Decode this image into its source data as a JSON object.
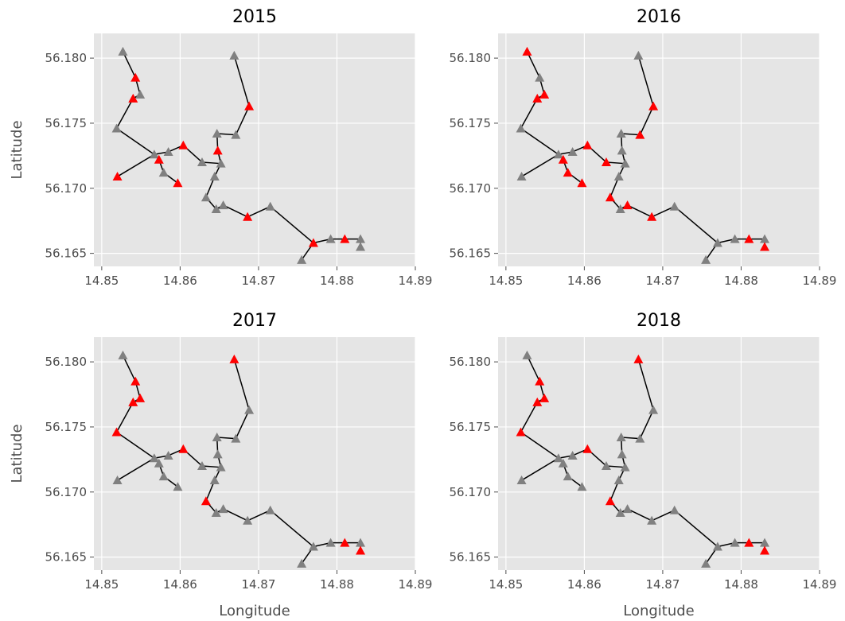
{
  "chart_data": [
    {
      "type": "scatter",
      "title": "2015",
      "ylabel": "Latitude",
      "x": [
        14.8527,
        14.8543,
        14.8549,
        14.854,
        14.8519,
        14.852,
        14.8567,
        14.8573,
        14.8585,
        14.8604,
        14.8579,
        14.8597,
        14.8628,
        14.8647,
        14.8648,
        14.8652,
        14.8644,
        14.8633,
        14.8646,
        14.8655,
        14.8671,
        14.8669,
        14.8688,
        14.8686,
        14.8715,
        14.877,
        14.8792,
        14.881,
        14.883,
        14.883,
        14.8755
      ],
      "y": [
        56.1805,
        56.1785,
        56.1772,
        56.1769,
        56.1746,
        56.1709,
        56.1726,
        56.1722,
        56.1728,
        56.1733,
        56.1712,
        56.1704,
        56.172,
        56.1742,
        56.1729,
        56.1719,
        56.1709,
        56.1693,
        56.1684,
        56.1687,
        56.1741,
        56.1802,
        56.1763,
        56.1678,
        56.1686,
        56.1658,
        56.1661,
        56.1661,
        56.1661,
        56.1655,
        56.1645
      ],
      "colors": [
        "gray",
        "red",
        "gray",
        "red",
        "gray",
        "red",
        "gray",
        "red",
        "gray",
        "red",
        "gray",
        "red",
        "gray",
        "gray",
        "red",
        "gray",
        "gray",
        "gray",
        "gray",
        "gray",
        "gray",
        "gray",
        "red",
        "red",
        "gray",
        "red",
        "gray",
        "red",
        "gray",
        "gray",
        "gray"
      ],
      "xlim": [
        14.849,
        14.89
      ],
      "ylim": [
        56.164,
        56.1819
      ],
      "xticks": [
        14.85,
        14.86,
        14.87,
        14.88,
        14.89
      ],
      "yticks": [
        {
          "value": 56.18,
          "label": "56.180"
        },
        56.175,
        {
          "value": 56.17,
          "label": "56.170"
        },
        56.165
      ],
      "grid": true
    },
    {
      "type": "scatter",
      "title": "2016",
      "x": [
        14.8527,
        14.8543,
        14.8549,
        14.854,
        14.8519,
        14.852,
        14.8567,
        14.8573,
        14.8585,
        14.8604,
        14.8579,
        14.8597,
        14.8628,
        14.8647,
        14.8648,
        14.8652,
        14.8644,
        14.8633,
        14.8646,
        14.8655,
        14.8671,
        14.8669,
        14.8688,
        14.8686,
        14.8715,
        14.877,
        14.8792,
        14.881,
        14.883,
        14.883,
        14.8755
      ],
      "y": [
        56.1805,
        56.1785,
        56.1772,
        56.1769,
        56.1746,
        56.1709,
        56.1726,
        56.1722,
        56.1728,
        56.1733,
        56.1712,
        56.1704,
        56.172,
        56.1742,
        56.1729,
        56.1719,
        56.1709,
        56.1693,
        56.1684,
        56.1687,
        56.1741,
        56.1802,
        56.1763,
        56.1678,
        56.1686,
        56.1658,
        56.1661,
        56.1661,
        56.1661,
        56.1655,
        56.1645
      ],
      "colors": [
        "red",
        "gray",
        "red",
        "red",
        "gray",
        "gray",
        "gray",
        "red",
        "gray",
        "red",
        "red",
        "red",
        "red",
        "gray",
        "gray",
        "gray",
        "gray",
        "red",
        "gray",
        "red",
        "red",
        "gray",
        "red",
        "red",
        "gray",
        "gray",
        "gray",
        "red",
        "gray",
        "red",
        "gray"
      ],
      "xlim": [
        14.849,
        14.89
      ],
      "ylim": [
        56.164,
        56.1819
      ],
      "xticks": [
        14.85,
        14.86,
        14.87,
        14.88,
        14.89
      ],
      "yticks": [
        {
          "value": 56.18,
          "label": "56.180"
        },
        56.175,
        {
          "value": 56.17,
          "label": "56.170"
        },
        56.165
      ],
      "grid": true
    },
    {
      "type": "scatter",
      "title": "2017",
      "xlabel": "Longitude",
      "ylabel": "Latitude",
      "x": [
        14.8527,
        14.8543,
        14.8549,
        14.854,
        14.8519,
        14.852,
        14.8567,
        14.8573,
        14.8585,
        14.8604,
        14.8579,
        14.8597,
        14.8628,
        14.8647,
        14.8648,
        14.8652,
        14.8644,
        14.8633,
        14.8646,
        14.8655,
        14.8671,
        14.8669,
        14.8688,
        14.8686,
        14.8715,
        14.877,
        14.8792,
        14.881,
        14.883,
        14.883,
        14.8755
      ],
      "y": [
        56.1805,
        56.1785,
        56.1772,
        56.1769,
        56.1746,
        56.1709,
        56.1726,
        56.1722,
        56.1728,
        56.1733,
        56.1712,
        56.1704,
        56.172,
        56.1742,
        56.1729,
        56.1719,
        56.1709,
        56.1693,
        56.1684,
        56.1687,
        56.1741,
        56.1802,
        56.1763,
        56.1678,
        56.1686,
        56.1658,
        56.1661,
        56.1661,
        56.1661,
        56.1655,
        56.1645
      ],
      "colors": [
        "gray",
        "red",
        "red",
        "red",
        "red",
        "gray",
        "gray",
        "gray",
        "gray",
        "red",
        "gray",
        "gray",
        "gray",
        "gray",
        "gray",
        "gray",
        "gray",
        "red",
        "gray",
        "gray",
        "gray",
        "red",
        "gray",
        "gray",
        "gray",
        "gray",
        "gray",
        "red",
        "gray",
        "red",
        "gray"
      ],
      "xlim": [
        14.849,
        14.89
      ],
      "ylim": [
        56.164,
        56.1819
      ],
      "xticks": [
        14.85,
        14.86,
        14.87,
        14.88,
        14.89
      ],
      "yticks": [
        {
          "value": 56.18,
          "label": "56.180"
        },
        56.175,
        {
          "value": 56.17,
          "label": "56.170"
        },
        56.165
      ],
      "grid": true
    },
    {
      "type": "scatter",
      "title": "2018",
      "xlabel": "Longitude",
      "x": [
        14.8527,
        14.8543,
        14.8549,
        14.854,
        14.8519,
        14.852,
        14.8567,
        14.8573,
        14.8585,
        14.8604,
        14.8579,
        14.8597,
        14.8628,
        14.8647,
        14.8648,
        14.8652,
        14.8644,
        14.8633,
        14.8646,
        14.8655,
        14.8671,
        14.8669,
        14.8688,
        14.8686,
        14.8715,
        14.877,
        14.8792,
        14.881,
        14.883,
        14.883,
        14.8755
      ],
      "y": [
        56.1805,
        56.1785,
        56.1772,
        56.1769,
        56.1746,
        56.1709,
        56.1726,
        56.1722,
        56.1728,
        56.1733,
        56.1712,
        56.1704,
        56.172,
        56.1742,
        56.1729,
        56.1719,
        56.1709,
        56.1693,
        56.1684,
        56.1687,
        56.1741,
        56.1802,
        56.1763,
        56.1678,
        56.1686,
        56.1658,
        56.1661,
        56.1661,
        56.1661,
        56.1655,
        56.1645
      ],
      "colors": [
        "gray",
        "red",
        "red",
        "red",
        "red",
        "gray",
        "gray",
        "gray",
        "gray",
        "red",
        "gray",
        "gray",
        "gray",
        "gray",
        "gray",
        "gray",
        "gray",
        "red",
        "gray",
        "gray",
        "gray",
        "red",
        "gray",
        "gray",
        "gray",
        "gray",
        "gray",
        "red",
        "gray",
        "red",
        "gray"
      ],
      "xlim": [
        14.849,
        14.89
      ],
      "ylim": [
        56.164,
        56.1819
      ],
      "xticks": [
        14.85,
        14.86,
        14.87,
        14.88,
        14.89
      ],
      "yticks": [
        {
          "value": 56.18,
          "label": "56.180"
        },
        56.175,
        {
          "value": 56.17,
          "label": "56.170"
        },
        56.165
      ],
      "grid": true
    }
  ]
}
